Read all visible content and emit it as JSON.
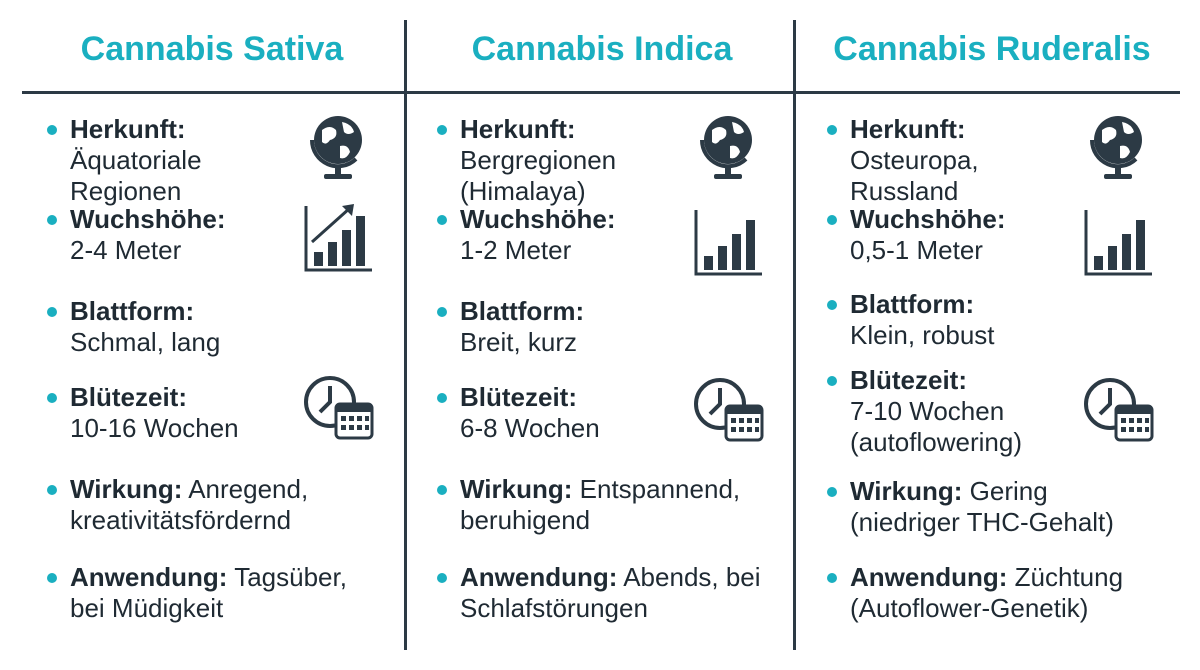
{
  "columns": [
    {
      "title": "Cannabis Sativa",
      "items": [
        {
          "label": "Herkunft:",
          "text": "Äquatoriale Regionen"
        },
        {
          "label": "Wuchshöhe:",
          "text": "2-4 Meter"
        },
        {
          "label": "Blattform:",
          "text": "Schmal, lang"
        },
        {
          "label": "Blütezeit:",
          "text": "10-16 Wochen"
        },
        {
          "label": "Wirkung:",
          "text": "Anregend, kreativitätsfördernd"
        },
        {
          "label": "Anwendung:",
          "text": "Tagsüber, bei Müdigkeit"
        }
      ]
    },
    {
      "title": "Cannabis Indica",
      "items": [
        {
          "label": "Herkunft:",
          "text": "Bergregionen (Himalaya)"
        },
        {
          "label": "Wuchshöhe:",
          "text": "1-2 Meter"
        },
        {
          "label": "Blattform:",
          "text": "Breit, kurz"
        },
        {
          "label": "Blütezeit:",
          "text": "6-8 Wochen"
        },
        {
          "label": "Wirkung:",
          "text": "Entspannend, beruhigend"
        },
        {
          "label": "Anwendung:",
          "text": "Abends, bei Schlafstörungen"
        }
      ]
    },
    {
      "title": "Cannabis Ruderalis",
      "items": [
        {
          "label": "Herkunft:",
          "text": "Osteuropa, Russland"
        },
        {
          "label": "Wuchshöhe:",
          "text": "0,5-1 Meter"
        },
        {
          "label": "Blattform:",
          "text": "Klein, robust"
        },
        {
          "label": "Blütezeit:",
          "text": "7-10 Wochen (autoflowering)"
        },
        {
          "label": "Wirkung:",
          "text": "Gering (niedriger THC-Gehalt)"
        },
        {
          "label": "Anwendung:",
          "text": "Züchtung (Autoflower-Genetik)"
        }
      ]
    }
  ]
}
